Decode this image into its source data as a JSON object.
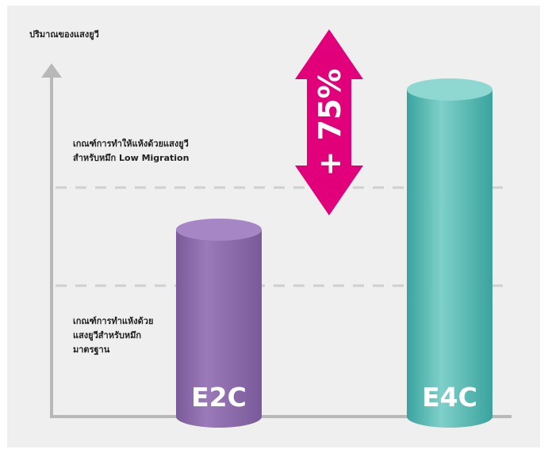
{
  "chart_data": {
    "type": "bar",
    "ylabel": "ปริมาณของแสงยูวี",
    "categories": [
      "E2C",
      "E4C"
    ],
    "values": [
      200,
      350
    ],
    "ylim": [
      0,
      400
    ],
    "grid": false,
    "thresholds": [
      {
        "value": 140,
        "label_lines": [
          "เกณฑ์การทำแห้งด้วย",
          "แสงยูวีสำหรับหมึก",
          "มาตรฐาน"
        ]
      },
      {
        "value": 245,
        "label_lines": [
          "เกณฑ์การทำให้แห้งด้วยแสงยูวี",
          "สำหรับหมึก Low Migration"
        ]
      }
    ],
    "annotation": {
      "text": "+ 75%",
      "color": "#e2007a"
    },
    "colors": {
      "e2c_body": "#8a6aa8",
      "e2c_top": "#a686c4",
      "e4c_body": "#4bb3ad",
      "e4c_top": "#8fd8d2",
      "axis": "#b8b8b8",
      "threshold_line": "#cfcfcf",
      "background": "#efefef"
    }
  }
}
